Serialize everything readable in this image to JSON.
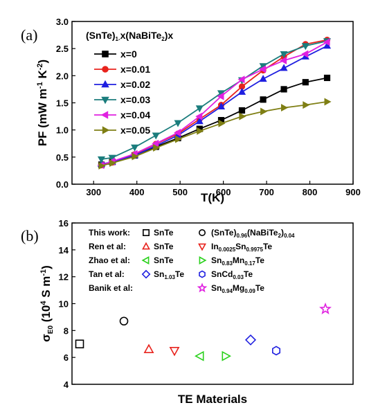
{
  "chart_data": [
    {
      "panel": "(a)",
      "type": "line",
      "legend_title": "(SnTe)1-x(NaBiTe2)x",
      "xlabel": "T(K)",
      "ylabel": "PF (mW m-1 K-2)",
      "xlim": [
        250,
        900
      ],
      "ylim": [
        0.0,
        3.0
      ],
      "xticks": [
        300,
        400,
        500,
        600,
        700,
        800,
        900
      ],
      "yticks": [
        0.0,
        0.5,
        1.0,
        1.5,
        2.0,
        2.5,
        3.0
      ],
      "legend_position": "top-left",
      "x": [
        318,
        343,
        395,
        444,
        495,
        545,
        595,
        643,
        692,
        740,
        790,
        840
      ],
      "series": [
        {
          "name": "x=0",
          "color": "#000000",
          "marker": "square",
          "values": [
            0.36,
            0.41,
            0.53,
            0.69,
            0.85,
            1.02,
            1.18,
            1.36,
            1.56,
            1.75,
            1.88,
            1.96
          ]
        },
        {
          "name": "x=0.01",
          "color": "#e8231d",
          "marker": "circle",
          "values": [
            0.35,
            0.4,
            0.55,
            0.74,
            0.93,
            1.2,
            1.46,
            1.8,
            2.1,
            2.35,
            2.58,
            2.66
          ]
        },
        {
          "name": "x=0.02",
          "color": "#1f1fe0",
          "marker": "triangle-up",
          "values": [
            0.37,
            0.41,
            0.53,
            0.71,
            0.9,
            1.16,
            1.43,
            1.7,
            1.94,
            2.14,
            2.35,
            2.55
          ]
        },
        {
          "name": "x=0.03",
          "color": "#1b7d7d",
          "marker": "triangle-down",
          "values": [
            0.46,
            0.49,
            0.68,
            0.9,
            1.13,
            1.4,
            1.68,
            1.92,
            2.18,
            2.4,
            2.55,
            2.64
          ]
        },
        {
          "name": "x=0.04",
          "color": "#e021e0",
          "marker": "triangle-left",
          "values": [
            0.35,
            0.42,
            0.56,
            0.75,
            0.95,
            1.25,
            1.62,
            1.93,
            2.12,
            2.28,
            2.4,
            2.62
          ]
        },
        {
          "name": "x=0.05",
          "color": "#7f7f14",
          "marker": "triangle-right",
          "values": [
            0.34,
            0.39,
            0.51,
            0.67,
            0.83,
            0.98,
            1.12,
            1.25,
            1.34,
            1.41,
            1.46,
            1.52
          ]
        }
      ]
    },
    {
      "panel": "(b)",
      "type": "scatter",
      "xlabel": "TE Materials",
      "ylabel": "σE0 (10^4 S m-1)",
      "ylim": [
        4,
        16
      ],
      "yticks": [
        4,
        6,
        8,
        10,
        12,
        14,
        16
      ],
      "points": [
        {
          "label": "SnTe",
          "author": "This work:",
          "y": 7.0,
          "marker": "square",
          "color": "#000000"
        },
        {
          "label": "(SnTe)0.96(NaBiTe2)0.04",
          "author": "This work:",
          "y": 8.7,
          "marker": "circle",
          "color": "#000000"
        },
        {
          "label": "SnTe",
          "author": "Ren et al:",
          "y": 6.6,
          "marker": "triangle-up",
          "color": "#e8231d"
        },
        {
          "label": "In0.0025Sn0.9975Te",
          "author": "Ren et al:",
          "y": 6.5,
          "marker": "triangle-down",
          "color": "#e8231d"
        },
        {
          "label": "SnTe",
          "author": "Zhao et al:",
          "y": 6.1,
          "marker": "triangle-left",
          "color": "#2ad11c"
        },
        {
          "label": "Sn0.83Mn0.17Te",
          "author": "Zhao et al:",
          "y": 6.1,
          "marker": "triangle-right",
          "color": "#2ad11c"
        },
        {
          "label": "Sn1.03Te",
          "author": "Tan et al:",
          "y": 7.3,
          "marker": "diamond",
          "color": "#1f1fe0"
        },
        {
          "label": "SnCd0.03Te",
          "author": "Tan et al:",
          "y": 6.5,
          "marker": "hexagon",
          "color": "#1f1fe0"
        },
        {
          "label": "Sn0.94Mg0.09Te",
          "author": "Banik et al:",
          "y": 9.6,
          "marker": "star",
          "color": "#e021e0"
        }
      ]
    }
  ],
  "legend_b": {
    "rows": [
      {
        "author": "This work:",
        "color": "#000000",
        "items": [
          {
            "marker": "square",
            "text": "SnTe"
          },
          {
            "marker": "circle",
            "text": "(SnTe)0.96(NaBiTe2)0.04"
          }
        ]
      },
      {
        "author": "Ren et al:",
        "color": "#e8231d",
        "items": [
          {
            "marker": "triangle-up",
            "text": "SnTe"
          },
          {
            "marker": "triangle-down",
            "text": "In0.0025Sn0.9975Te"
          }
        ]
      },
      {
        "author": "Zhao et al:",
        "color": "#2ad11c",
        "items": [
          {
            "marker": "triangle-left",
            "text": "SnTe"
          },
          {
            "marker": "triangle-right",
            "text": "Sn0.83Mn0.17Te"
          }
        ]
      },
      {
        "author": "Tan et al:",
        "color": "#1f1fe0",
        "items": [
          {
            "marker": "diamond",
            "text": "Sn1.03Te"
          },
          {
            "marker": "hexagon",
            "text": "SnCd0.03Te"
          }
        ]
      },
      {
        "author": "Banik et al:",
        "color": "#e021e0",
        "items": [
          {
            "marker": "star",
            "text": "Sn0.94Mg0.09Te"
          }
        ]
      }
    ]
  }
}
